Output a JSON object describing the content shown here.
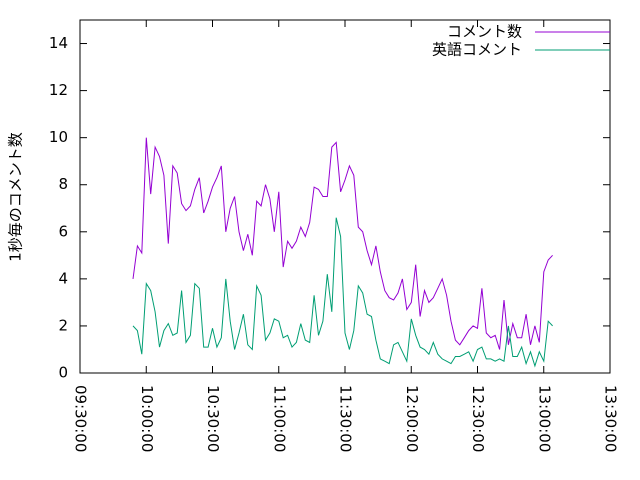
{
  "chart_data": {
    "type": "line",
    "ylabel": "1秒毎のコメント数",
    "x": [
      "09:54:00",
      "09:56:00",
      "09:58:00",
      "10:00:00",
      "10:02:00",
      "10:04:00",
      "10:06:00",
      "10:08:00",
      "10:10:00",
      "10:12:00",
      "10:14:00",
      "10:16:00",
      "10:18:00",
      "10:20:00",
      "10:22:00",
      "10:24:00",
      "10:26:00",
      "10:28:00",
      "10:30:00",
      "10:32:00",
      "10:34:00",
      "10:36:00",
      "10:38:00",
      "10:40:00",
      "10:42:00",
      "10:44:00",
      "10:46:00",
      "10:48:00",
      "10:50:00",
      "10:52:00",
      "10:54:00",
      "10:56:00",
      "10:58:00",
      "11:00:00",
      "11:02:00",
      "11:04:00",
      "11:06:00",
      "11:08:00",
      "11:10:00",
      "11:12:00",
      "11:14:00",
      "11:16:00",
      "11:18:00",
      "11:20:00",
      "11:22:00",
      "11:24:00",
      "11:26:00",
      "11:28:00",
      "11:30:00",
      "11:32:00",
      "11:34:00",
      "11:36:00",
      "11:38:00",
      "11:40:00",
      "11:42:00",
      "11:44:00",
      "11:46:00",
      "11:48:00",
      "11:50:00",
      "11:52:00",
      "11:54:00",
      "11:56:00",
      "11:58:00",
      "12:00:00",
      "12:02:00",
      "12:04:00",
      "12:06:00",
      "12:08:00",
      "12:10:00",
      "12:12:00",
      "12:14:00",
      "12:16:00",
      "12:18:00",
      "12:20:00",
      "12:22:00",
      "12:24:00",
      "12:26:00",
      "12:28:00",
      "12:30:00",
      "12:32:00",
      "12:34:00",
      "12:36:00",
      "12:38:00",
      "12:40:00",
      "12:42:00",
      "12:44:00",
      "12:46:00",
      "12:48:00",
      "12:50:00",
      "12:52:00",
      "12:54:00",
      "12:56:00",
      "12:58:00",
      "13:00:00",
      "13:02:00",
      "13:04:00"
    ],
    "series": [
      {
        "name": "コメント数",
        "color": "#9400d3",
        "values": [
          4.0,
          5.4,
          5.1,
          10.0,
          7.6,
          9.6,
          9.2,
          8.4,
          5.5,
          8.8,
          8.5,
          7.2,
          6.9,
          7.1,
          7.8,
          8.3,
          6.8,
          7.3,
          7.9,
          8.3,
          8.8,
          6.0,
          7.0,
          7.5,
          6.0,
          5.2,
          5.9,
          5.0,
          7.3,
          7.1,
          8.0,
          7.4,
          6.0,
          7.7,
          4.5,
          5.6,
          5.3,
          5.6,
          6.2,
          5.8,
          6.4,
          7.9,
          7.8,
          7.5,
          7.5,
          9.6,
          9.8,
          7.7,
          8.2,
          8.8,
          8.4,
          6.2,
          6.0,
          5.2,
          4.6,
          5.4,
          4.3,
          3.5,
          3.2,
          3.1,
          3.4,
          4.0,
          2.7,
          3.0,
          4.6,
          2.4,
          3.5,
          3.0,
          3.2,
          3.6,
          4.0,
          3.3,
          2.2,
          1.4,
          1.2,
          1.5,
          1.8,
          2.0,
          1.9,
          3.6,
          1.7,
          1.5,
          1.6,
          1.0,
          3.1,
          1.2,
          2.1,
          1.5,
          1.5,
          2.5,
          1.2,
          2.0,
          1.3,
          4.3,
          4.8,
          5.0
        ]
      },
      {
        "name": "英語コメント",
        "color": "#009e73",
        "values": [
          2.0,
          1.8,
          0.8,
          3.8,
          3.5,
          2.6,
          1.1,
          1.8,
          2.1,
          1.6,
          1.7,
          3.5,
          1.3,
          1.6,
          3.8,
          3.6,
          1.1,
          1.1,
          1.9,
          1.1,
          1.5,
          4.0,
          2.2,
          1.0,
          1.7,
          2.5,
          1.2,
          1.0,
          3.7,
          3.3,
          1.4,
          1.7,
          2.3,
          2.2,
          1.5,
          1.6,
          1.1,
          1.3,
          2.1,
          1.4,
          1.3,
          3.3,
          1.6,
          2.2,
          4.2,
          2.6,
          6.6,
          5.8,
          1.7,
          1.0,
          1.8,
          3.7,
          3.4,
          2.5,
          2.4,
          1.4,
          0.6,
          0.5,
          0.4,
          1.2,
          1.3,
          0.9,
          0.5,
          2.3,
          1.6,
          1.1,
          1.0,
          0.8,
          1.3,
          0.8,
          0.6,
          0.5,
          0.4,
          0.7,
          0.7,
          0.8,
          0.9,
          0.5,
          1.0,
          1.1,
          0.6,
          0.6,
          0.5,
          0.6,
          0.5,
          2.0,
          0.7,
          0.7,
          1.1,
          0.4,
          0.9,
          0.3,
          0.9,
          0.5,
          2.2,
          2.0
        ]
      }
    ],
    "xlim": [
      "09:30:00",
      "13:30:00"
    ],
    "xticks": [
      "09:30:00",
      "10:00:00",
      "10:30:00",
      "11:00:00",
      "11:30:00",
      "12:00:00",
      "12:30:00",
      "13:00:00",
      "13:30:00"
    ],
    "ylim": [
      0,
      15
    ],
    "yticks": [
      0,
      2,
      4,
      6,
      8,
      10,
      12,
      14
    ],
    "legend": "top-right"
  }
}
